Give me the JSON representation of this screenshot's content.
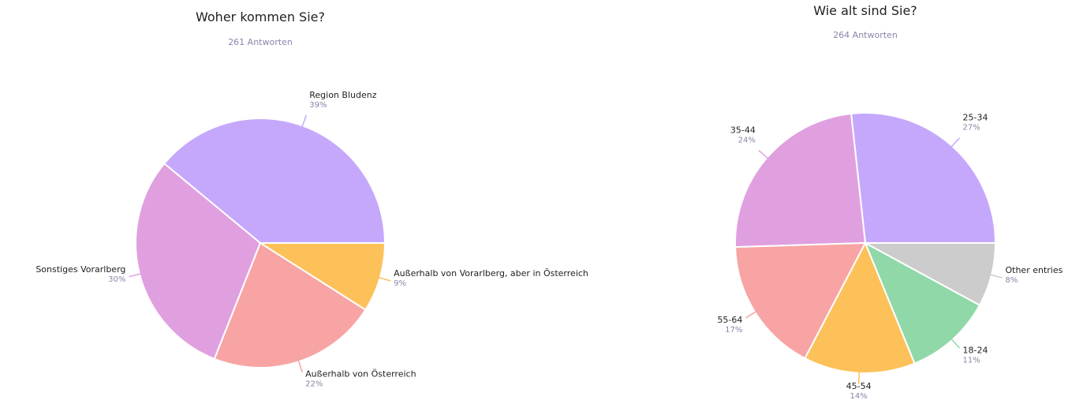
{
  "chart_data": [
    {
      "type": "pie",
      "title": "Woher kommen Sie?",
      "subtitle": "261 Antworten",
      "categories": [
        "Region Bludenz",
        "Sonstiges Vorarlberg",
        "Außerhalb von Österreich",
        "Außerhalb von Vorarlberg, aber in Österreich"
      ],
      "values": [
        39,
        30,
        22,
        9
      ],
      "value_labels": [
        "39%",
        "30%",
        "22%",
        "9%"
      ],
      "colors": [
        "#c5a8fb",
        "#e0a0e0",
        "#f8a4a4",
        "#fdc15a"
      ]
    },
    {
      "type": "pie",
      "title": "Wie alt sind Sie?",
      "subtitle": "264 Antworten",
      "categories": [
        "25-34",
        "35-44",
        "55-64",
        "45-54",
        "18-24",
        "Other entries"
      ],
      "values": [
        27,
        24,
        17,
        14,
        11,
        8
      ],
      "value_labels": [
        "27%",
        "24%",
        "17%",
        "14%",
        "11%",
        "8%"
      ],
      "colors": [
        "#c5a8fb",
        "#e0a0e0",
        "#f8a4a4",
        "#fdc15a",
        "#90d8a8",
        "#cccccc"
      ]
    }
  ]
}
